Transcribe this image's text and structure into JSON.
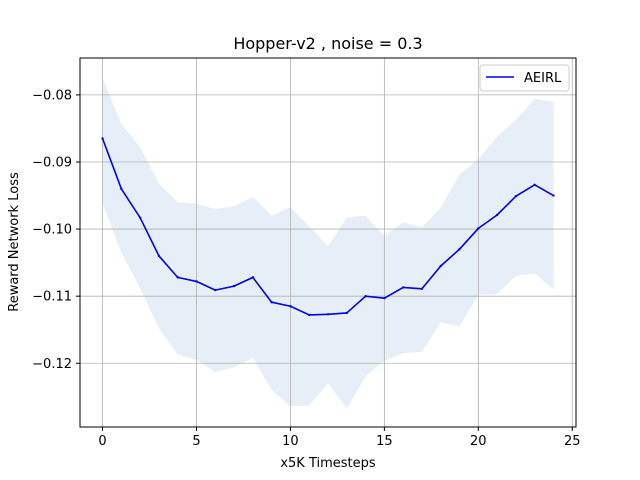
{
  "chart_data": {
    "type": "line",
    "title": "Hopper-v2 , noise = 0.3",
    "xlabel": "x5K Timesteps",
    "ylabel": "Reward Network Loss",
    "xlim": [
      -1.2,
      25.2
    ],
    "ylim": [
      -0.1295,
      -0.0745
    ],
    "xticks": [
      0,
      5,
      10,
      15,
      20,
      25
    ],
    "yticks": [
      -0.12,
      -0.11,
      -0.1,
      -0.09,
      -0.08
    ],
    "xtick_labels": [
      "0",
      "5",
      "10",
      "15",
      "20",
      "25"
    ],
    "ytick_labels": [
      "−0.12",
      "−0.11",
      "−0.10",
      "−0.09",
      "−0.08"
    ],
    "grid": true,
    "legend_position": "top-right",
    "series": [
      {
        "name": "AEIRL",
        "color": "#0000ee",
        "band_color": "#e6eff8",
        "x": [
          0,
          1,
          2,
          3,
          4,
          5,
          6,
          7,
          8,
          9,
          10,
          11,
          12,
          13,
          14,
          15,
          16,
          17,
          18,
          19,
          20,
          21,
          22,
          23,
          24
        ],
        "y": [
          -0.0865,
          -0.094,
          -0.0983,
          -0.104,
          -0.1072,
          -0.1078,
          -0.1091,
          -0.1085,
          -0.1072,
          -0.1109,
          -0.1115,
          -0.1128,
          -0.1127,
          -0.1125,
          -0.11,
          -0.1103,
          -0.1087,
          -0.1089,
          -0.1055,
          -0.103,
          -0.0999,
          -0.0979,
          -0.0951,
          -0.0934,
          -0.095
        ],
        "upper": [
          -0.0775,
          -0.0843,
          -0.0878,
          -0.0932,
          -0.096,
          -0.0962,
          -0.097,
          -0.0966,
          -0.0952,
          -0.098,
          -0.0967,
          -0.0996,
          -0.1025,
          -0.0983,
          -0.098,
          -0.101,
          -0.099,
          -0.0997,
          -0.0968,
          -0.0918,
          -0.0896,
          -0.0862,
          -0.0837,
          -0.0806,
          -0.081
        ],
        "lower": [
          -0.0962,
          -0.1035,
          -0.1088,
          -0.1148,
          -0.1187,
          -0.1195,
          -0.1213,
          -0.1206,
          -0.1192,
          -0.124,
          -0.1264,
          -0.1263,
          -0.123,
          -0.1267,
          -0.122,
          -0.1196,
          -0.1185,
          -0.1183,
          -0.1139,
          -0.1145,
          -0.1098,
          -0.1097,
          -0.107,
          -0.1066,
          -0.109
        ]
      }
    ]
  }
}
